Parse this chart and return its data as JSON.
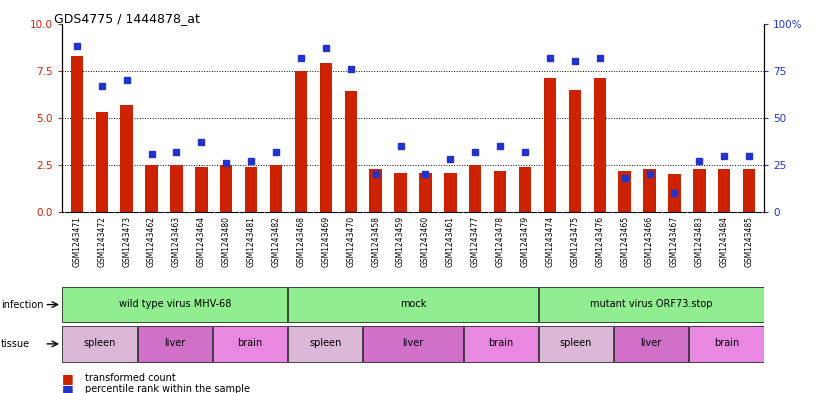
{
  "title": "GDS4775 / 1444878_at",
  "samples": [
    "GSM1243471",
    "GSM1243472",
    "GSM1243473",
    "GSM1243462",
    "GSM1243463",
    "GSM1243464",
    "GSM1243480",
    "GSM1243481",
    "GSM1243482",
    "GSM1243468",
    "GSM1243469",
    "GSM1243470",
    "GSM1243458",
    "GSM1243459",
    "GSM1243460",
    "GSM1243461",
    "GSM1243477",
    "GSM1243478",
    "GSM1243479",
    "GSM1243474",
    "GSM1243475",
    "GSM1243476",
    "GSM1243465",
    "GSM1243466",
    "GSM1243467",
    "GSM1243483",
    "GSM1243484",
    "GSM1243485"
  ],
  "red_values": [
    8.3,
    5.3,
    5.7,
    2.5,
    2.5,
    2.4,
    2.5,
    2.4,
    2.5,
    7.5,
    7.9,
    6.4,
    2.3,
    2.1,
    2.1,
    2.1,
    2.5,
    2.2,
    2.4,
    7.1,
    6.5,
    7.1,
    2.2,
    2.3,
    2.0,
    2.3,
    2.3,
    2.3
  ],
  "blue_values": [
    88,
    67,
    70,
    31,
    32,
    37,
    26,
    27,
    32,
    82,
    87,
    76,
    20,
    35,
    20,
    28,
    32,
    35,
    32,
    82,
    80,
    82,
    18,
    20,
    10,
    27,
    30,
    30
  ],
  "infection_groups": [
    {
      "label": "wild type virus MHV-68",
      "start": 0,
      "end": 9
    },
    {
      "label": "mock",
      "start": 9,
      "end": 19
    },
    {
      "label": "mutant virus ORF73.stop",
      "start": 19,
      "end": 28
    }
  ],
  "tissue_groups": [
    {
      "label": "spleen",
      "start": 0,
      "end": 3,
      "color": "#dbb8d8"
    },
    {
      "label": "liver",
      "start": 3,
      "end": 6,
      "color": "#d070c8"
    },
    {
      "label": "brain",
      "start": 6,
      "end": 9,
      "color": "#e888e0"
    },
    {
      "label": "spleen",
      "start": 9,
      "end": 12,
      "color": "#dbb8d8"
    },
    {
      "label": "liver",
      "start": 12,
      "end": 16,
      "color": "#d070c8"
    },
    {
      "label": "brain",
      "start": 16,
      "end": 19,
      "color": "#e888e0"
    },
    {
      "label": "spleen",
      "start": 19,
      "end": 22,
      "color": "#dbb8d8"
    },
    {
      "label": "liver",
      "start": 22,
      "end": 25,
      "color": "#d070c8"
    },
    {
      "label": "brain",
      "start": 25,
      "end": 28,
      "color": "#e888e0"
    }
  ],
  "infection_color": "#90ee90",
  "red_color": "#cc2200",
  "blue_color": "#2233cc",
  "bar_width": 0.5,
  "ylim_left": [
    0,
    10
  ],
  "ylim_right": [
    0,
    100
  ],
  "yticks_left": [
    0,
    2.5,
    5.0,
    7.5,
    10
  ],
  "yticks_right": [
    0,
    25,
    50,
    75,
    100
  ],
  "grid_values": [
    2.5,
    5.0,
    7.5
  ],
  "xtick_bg": "#d8d8d8"
}
